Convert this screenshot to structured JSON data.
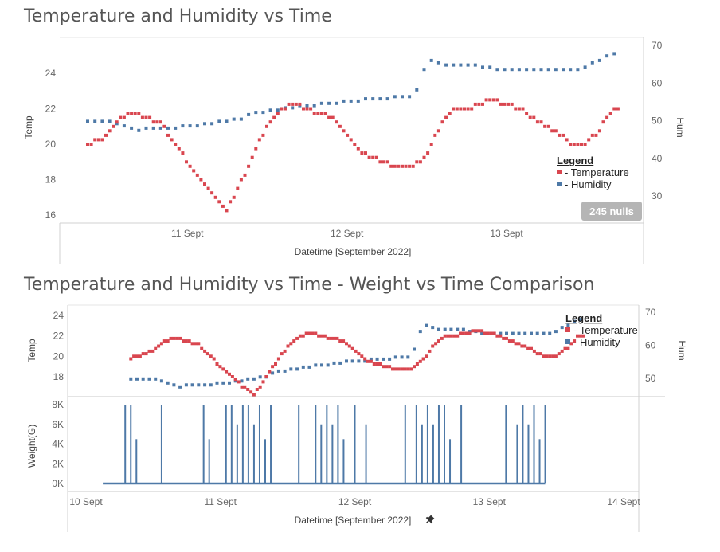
{
  "chart_data": [
    {
      "type": "scatter",
      "title": "Temperature and Humidity vs Time",
      "xlabel": "Datetime [September 2022]",
      "x_ticks": [
        "11 Sept",
        "12 Sept",
        "13 Sept"
      ],
      "xlim": [
        "2022-09-10T09:00",
        "2022-09-13T17:00"
      ],
      "y_left": {
        "label": "Temp",
        "lim": [
          15.8,
          25.2
        ],
        "ticks": [
          16,
          18,
          20,
          22,
          24
        ]
      },
      "y_right": {
        "label": "Hum",
        "lim": [
          25,
          71
        ],
        "ticks": [
          30,
          40,
          50,
          60,
          70
        ]
      },
      "legend": {
        "title": "Legend",
        "items": [
          "- Temperature",
          "- Humidity"
        ],
        "placement": "right"
      },
      "annotation": "245 nulls",
      "series": [
        {
          "name": "- Temperature",
          "axis": "left",
          "color": "#d9464f",
          "points": [
            [
              "2022-09-10T08:00",
              19.8
            ],
            [
              "2022-09-10T12:00",
              20.5
            ],
            [
              "2022-09-10T14:00",
              21.5
            ],
            [
              "2022-09-10T16:00",
              21.8
            ],
            [
              "2022-09-10T20:00",
              21.2
            ],
            [
              "2022-09-11T00:00",
              19.0
            ],
            [
              "2022-09-11T04:00",
              17.0
            ],
            [
              "2022-09-11T06:00",
              16.3
            ],
            [
              "2022-09-11T08:00",
              17.8
            ],
            [
              "2022-09-11T10:00",
              19.5
            ],
            [
              "2022-09-11T12:00",
              21.0
            ],
            [
              "2022-09-11T14:00",
              22.0
            ],
            [
              "2022-09-11T16:00",
              22.3
            ],
            [
              "2022-09-11T18:00",
              22.0
            ],
            [
              "2022-09-11T22:00",
              21.5
            ],
            [
              "2022-09-12T02:00",
              19.6
            ],
            [
              "2022-09-12T06:00",
              18.9
            ],
            [
              "2022-09-12T10:00",
              18.7
            ],
            [
              "2022-09-12T12:00",
              19.5
            ],
            [
              "2022-09-12T14:00",
              21.0
            ],
            [
              "2022-09-12T16:00",
              21.9
            ],
            [
              "2022-09-12T18:00",
              22.0
            ],
            [
              "2022-09-12T20:00",
              22.3
            ],
            [
              "2022-09-12T22:00",
              22.5
            ],
            [
              "2022-09-13T02:00",
              22.0
            ],
            [
              "2022-09-13T06:00",
              21.0
            ],
            [
              "2022-09-13T10:00",
              20.0
            ],
            [
              "2022-09-13T12:00",
              20.1
            ],
            [
              "2022-09-13T14:00",
              20.8
            ],
            [
              "2022-09-13T16:00",
              22.1
            ],
            [
              "2022-09-13T17:00",
              22.1
            ]
          ]
        },
        {
          "name": "- Humidity",
          "axis": "right",
          "color": "#4e79a7",
          "points": [
            [
              "2022-09-10T08:00",
              49.5
            ],
            [
              "2022-09-10T12:00",
              50.0
            ],
            [
              "2022-09-10T14:00",
              49.0
            ],
            [
              "2022-09-10T16:00",
              47.5
            ],
            [
              "2022-09-10T20:00",
              48.0
            ],
            [
              "2022-09-11T00:00",
              48.5
            ],
            [
              "2022-09-11T04:00",
              49.5
            ],
            [
              "2022-09-11T08:00",
              50.5
            ],
            [
              "2022-09-11T10:00",
              52.0
            ],
            [
              "2022-09-11T12:00",
              52.5
            ],
            [
              "2022-09-11T14:00",
              53.0
            ],
            [
              "2022-09-11T16:00",
              53.5
            ],
            [
              "2022-09-11T20:00",
              54.5
            ],
            [
              "2022-09-12T02:00",
              55.5
            ],
            [
              "2022-09-12T06:00",
              56.0
            ],
            [
              "2022-09-12T10:00",
              56.5
            ],
            [
              "2022-09-12T11:00",
              60.0
            ],
            [
              "2022-09-12T12:00",
              66.0
            ],
            [
              "2022-09-12T16:00",
              64.5
            ],
            [
              "2022-09-12T20:00",
              64.5
            ],
            [
              "2022-09-13T00:00",
              63.5
            ],
            [
              "2022-09-13T06:00",
              63.5
            ],
            [
              "2022-09-13T10:00",
              63.5
            ],
            [
              "2022-09-13T12:00",
              64.5
            ],
            [
              "2022-09-13T14:00",
              66.0
            ],
            [
              "2022-09-13T16:00",
              68.0
            ],
            [
              "2022-09-13T17:00",
              67.0
            ]
          ]
        }
      ]
    },
    {
      "type": "scatter",
      "title": "Temperature and Humidity vs Time - Weight vs Time Comparison",
      "xlabel": "Datetime [September 2022]",
      "x_ticks": [
        "10 Sept",
        "11 Sept",
        "12 Sept",
        "13 Sept",
        "14 Sept"
      ],
      "xlim": [
        "2022-09-10T00:00",
        "2022-09-14T00:00"
      ],
      "y_left": {
        "label": "Temp",
        "lim": [
          16.2,
          25.2
        ],
        "ticks": [
          18,
          20,
          22,
          24
        ]
      },
      "y_right": {
        "label": "Hum",
        "lim": [
          43,
          72
        ],
        "ticks": [
          50,
          60,
          70
        ]
      },
      "legend": {
        "title": "Legend",
        "items": [
          "- Temperature",
          "- Humidity"
        ],
        "placement": "top-right"
      },
      "series_ref": "same as first chart"
    },
    {
      "type": "line",
      "title": "",
      "xlabel": "Datetime [September 2022]",
      "y_label": "Weight(G)",
      "y_ticks": [
        "0K",
        "2K",
        "4K",
        "6K",
        "8K"
      ],
      "ylim": [
        0,
        8500
      ],
      "baseline": 0,
      "spike_peak": 8000,
      "spikes": [
        {
          "t": "2022-09-10T07:00",
          "v": 8000
        },
        {
          "t": "2022-09-10T08:00",
          "v": 8000
        },
        {
          "t": "2022-09-10T09:00",
          "v": 4500
        },
        {
          "t": "2022-09-10T13:30",
          "v": 8000
        },
        {
          "t": "2022-09-10T21:00",
          "v": 8000
        },
        {
          "t": "2022-09-10T22:00",
          "v": 4500
        },
        {
          "t": "2022-09-11T01:00",
          "v": 8000
        },
        {
          "t": "2022-09-11T02:00",
          "v": 8000
        },
        {
          "t": "2022-09-11T03:00",
          "v": 6000
        },
        {
          "t": "2022-09-11T04:00",
          "v": 8000
        },
        {
          "t": "2022-09-11T05:00",
          "v": 8000
        },
        {
          "t": "2022-09-11T06:00",
          "v": 6000
        },
        {
          "t": "2022-09-11T07:00",
          "v": 8000
        },
        {
          "t": "2022-09-11T08:00",
          "v": 4500
        },
        {
          "t": "2022-09-11T09:00",
          "v": 8000
        },
        {
          "t": "2022-09-11T14:00",
          "v": 8000
        },
        {
          "t": "2022-09-11T17:00",
          "v": 8000
        },
        {
          "t": "2022-09-11T18:00",
          "v": 6000
        },
        {
          "t": "2022-09-11T19:00",
          "v": 8000
        },
        {
          "t": "2022-09-11T20:00",
          "v": 6000
        },
        {
          "t": "2022-09-11T21:00",
          "v": 8000
        },
        {
          "t": "2022-09-11T22:00",
          "v": 4500
        },
        {
          "t": "2022-09-12T00:00",
          "v": 8000
        },
        {
          "t": "2022-09-12T02:00",
          "v": 6000
        },
        {
          "t": "2022-09-12T09:00",
          "v": 8000
        },
        {
          "t": "2022-09-12T11:00",
          "v": 8000
        },
        {
          "t": "2022-09-12T12:00",
          "v": 6000
        },
        {
          "t": "2022-09-12T13:00",
          "v": 8000
        },
        {
          "t": "2022-09-12T14:00",
          "v": 6000
        },
        {
          "t": "2022-09-12T15:00",
          "v": 8000
        },
        {
          "t": "2022-09-12T16:00",
          "v": 8000
        },
        {
          "t": "2022-09-12T17:00",
          "v": 4500
        },
        {
          "t": "2022-09-12T19:00",
          "v": 8000
        },
        {
          "t": "2022-09-13T03:00",
          "v": 8000
        },
        {
          "t": "2022-09-13T05:00",
          "v": 6000
        },
        {
          "t": "2022-09-13T06:00",
          "v": 8000
        },
        {
          "t": "2022-09-13T07:00",
          "v": 6000
        },
        {
          "t": "2022-09-13T08:00",
          "v": 8000
        },
        {
          "t": "2022-09-13T09:00",
          "v": 4500
        },
        {
          "t": "2022-09-13T10:00",
          "v": 8000
        }
      ],
      "range": [
        "2022-09-10T03:00",
        "2022-09-13T10:00"
      ],
      "color": "#4e79a7"
    }
  ],
  "ui": {
    "title1": "Temperature and Humidity vs Time",
    "title2": "Temperature and Humidity vs Time - Weight vs Time Comparison",
    "pin_icon": "pin-icon"
  }
}
